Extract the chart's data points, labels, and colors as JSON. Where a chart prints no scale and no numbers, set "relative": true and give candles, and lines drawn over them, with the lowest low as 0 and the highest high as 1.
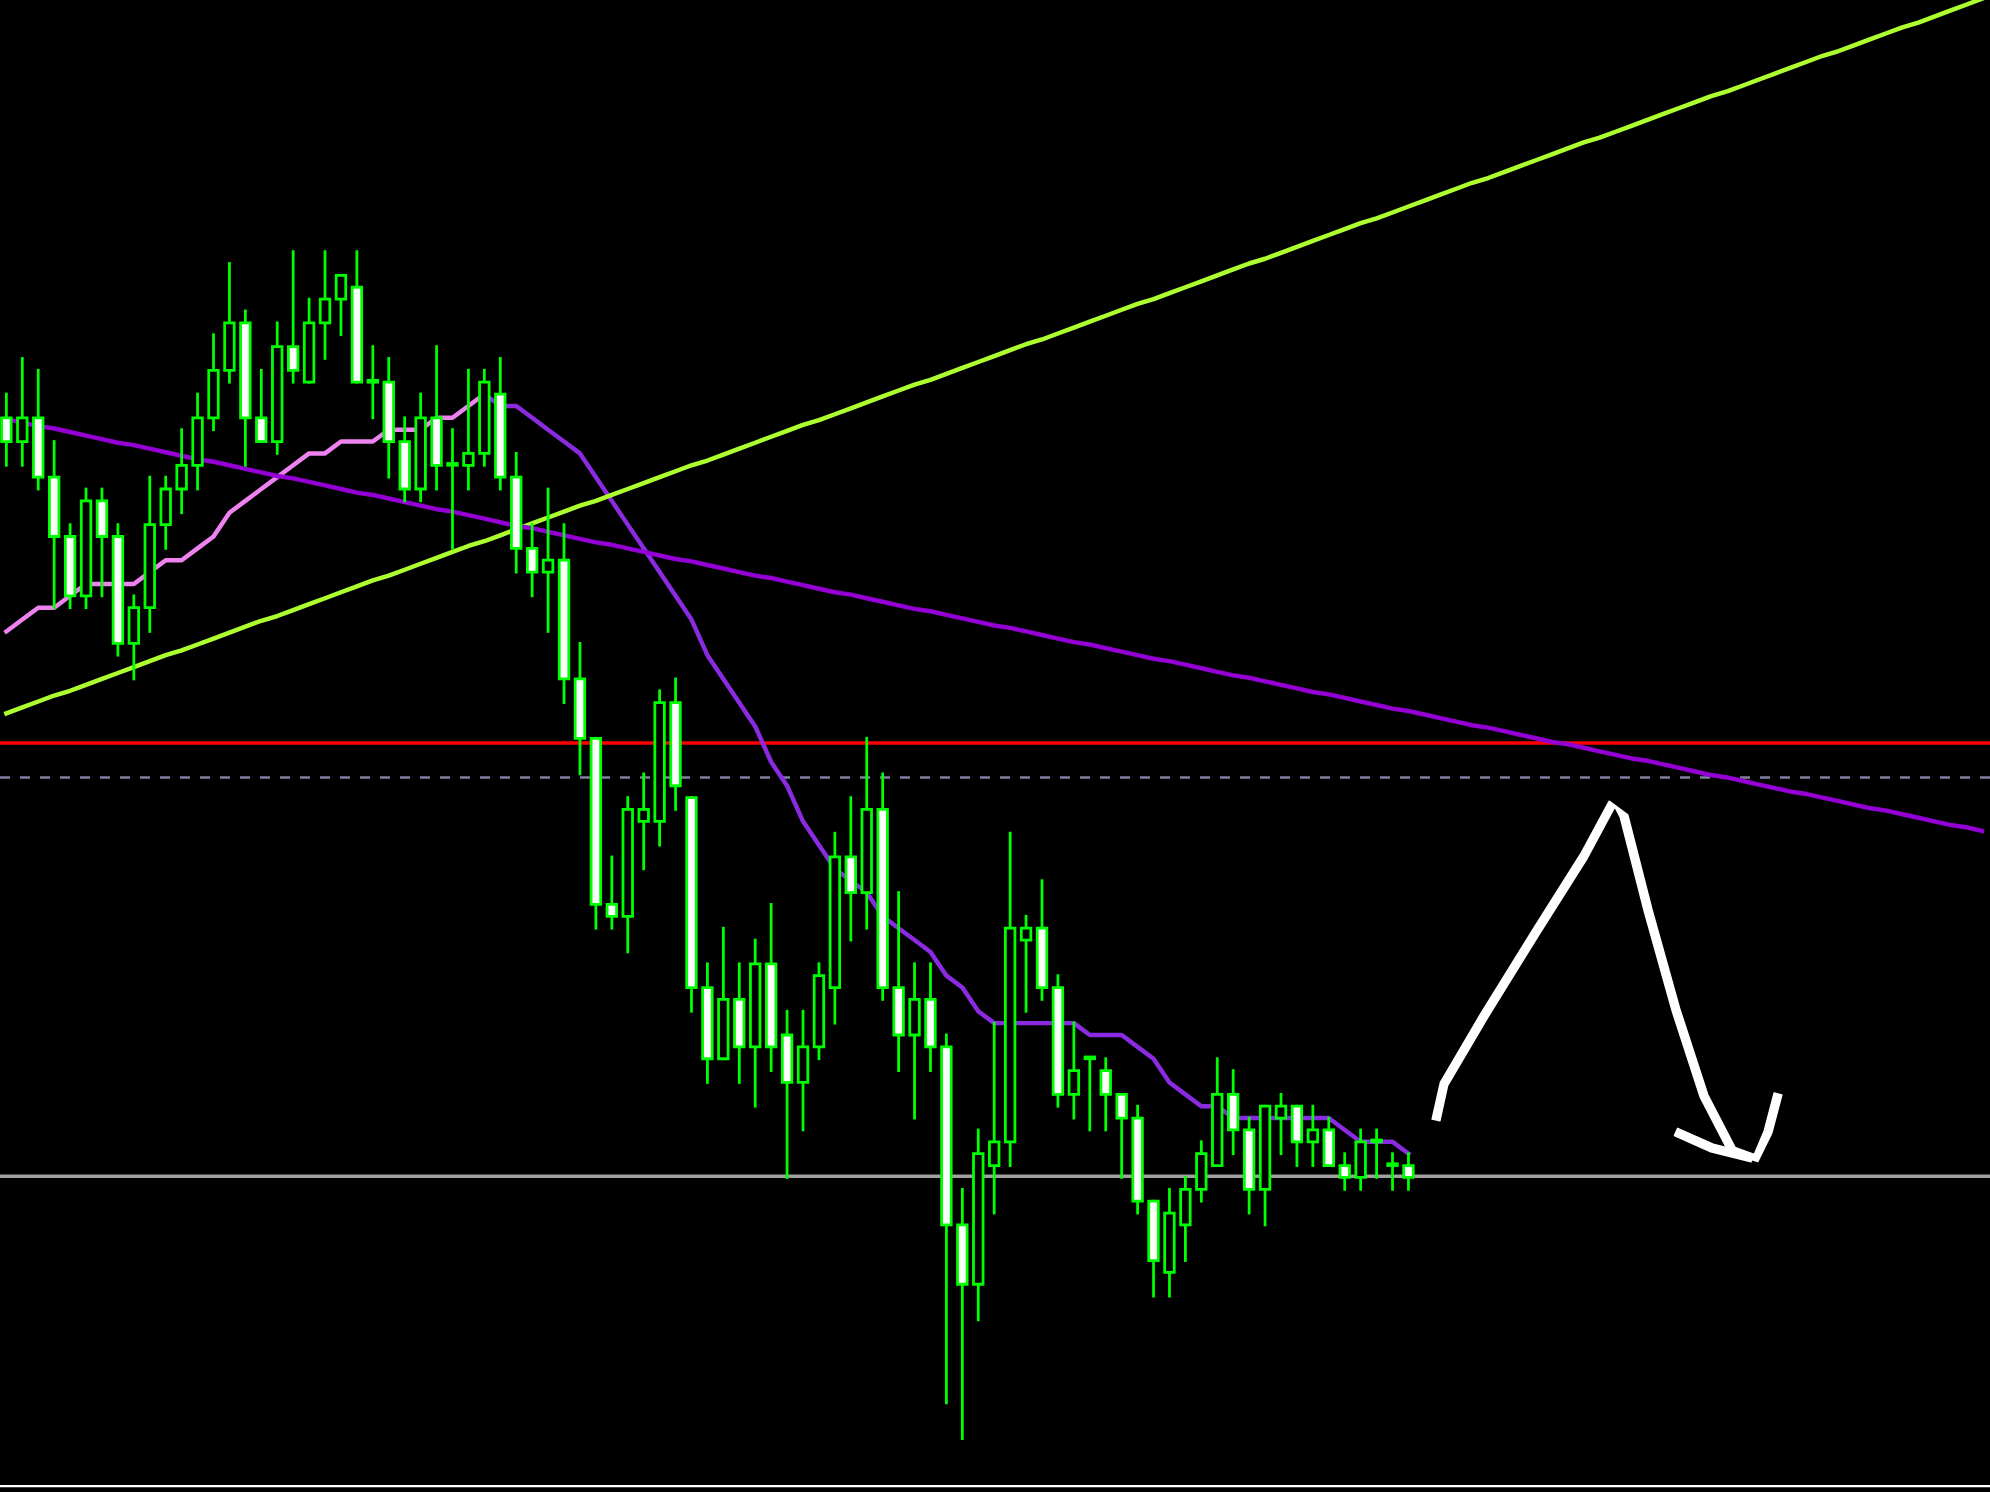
{
  "chart_data": {
    "type": "candlestick",
    "relative": true,
    "categories": [
      null,
      null,
      null,
      null,
      null,
      null,
      null,
      null,
      null,
      null,
      null,
      null,
      null,
      null,
      null,
      null,
      null,
      null,
      null,
      null,
      null,
      null,
      null,
      null,
      null,
      null,
      null,
      null,
      null,
      null,
      null,
      null,
      null,
      null,
      null,
      null,
      null,
      null,
      null,
      null,
      null,
      null,
      null,
      null,
      null,
      null,
      null,
      null,
      null,
      null,
      null,
      null,
      null,
      null,
      null,
      null,
      null,
      null,
      null,
      null,
      null,
      null,
      null,
      null,
      null,
      null,
      null,
      null,
      null,
      null,
      null,
      null,
      null,
      null,
      null,
      null,
      null,
      null,
      null,
      null,
      null,
      null,
      null,
      null,
      null,
      null,
      null,
      null,
      null,
      null,
      null,
      null,
      null,
      null,
      null,
      null,
      null,
      null,
      null,
      null,
      null,
      null,
      null,
      null,
      null,
      null,
      null,
      null,
      null,
      null,
      null,
      null,
      null,
      null,
      null,
      null,
      null,
      null,
      null,
      null,
      null,
      null,
      null,
      null,
      null
    ],
    "ohlc": [
      [
        0.86,
        0.88,
        0.82,
        0.84
      ],
      [
        0.84,
        0.91,
        0.82,
        0.86
      ],
      [
        0.86,
        0.9,
        0.8,
        0.81
      ],
      [
        0.81,
        0.84,
        0.7,
        0.76
      ],
      [
        0.76,
        0.77,
        0.7,
        0.71
      ],
      [
        0.71,
        0.8,
        0.7,
        0.79
      ],
      [
        0.79,
        0.8,
        0.71,
        0.76
      ],
      [
        0.76,
        0.77,
        0.66,
        0.67
      ],
      [
        0.67,
        0.71,
        0.64,
        0.7
      ],
      [
        0.7,
        0.81,
        0.68,
        0.77
      ],
      [
        0.77,
        0.81,
        0.75,
        0.8
      ],
      [
        0.8,
        0.85,
        0.78,
        0.82
      ],
      [
        0.82,
        0.88,
        0.8,
        0.86
      ],
      [
        0.86,
        0.93,
        0.85,
        0.9
      ],
      [
        0.9,
        0.99,
        0.89,
        0.94
      ],
      [
        0.94,
        0.95,
        0.82,
        0.86
      ],
      [
        0.86,
        0.9,
        0.84,
        0.84
      ],
      [
        0.84,
        0.94,
        0.83,
        0.92
      ],
      [
        0.92,
        1.0,
        0.89,
        0.9
      ],
      [
        0.89,
        0.96,
        0.89,
        0.94
      ],
      [
        0.94,
        1.0,
        0.91,
        0.96
      ],
      [
        0.96,
        0.98,
        0.93,
        0.98
      ],
      [
        0.97,
        1.0,
        0.89,
        0.89
      ],
      [
        0.89,
        0.92,
        0.86,
        0.89
      ],
      [
        0.89,
        0.91,
        0.81,
        0.84
      ],
      [
        0.84,
        0.86,
        0.79,
        0.8
      ],
      [
        0.8,
        0.88,
        0.79,
        0.86
      ],
      [
        0.86,
        0.92,
        0.8,
        0.82
      ],
      [
        0.82,
        0.85,
        0.75,
        0.82
      ],
      [
        0.82,
        0.9,
        0.8,
        0.83
      ],
      [
        0.83,
        0.9,
        0.82,
        0.89
      ],
      [
        0.88,
        0.91,
        0.8,
        0.81
      ],
      [
        0.81,
        0.83,
        0.73,
        0.75
      ],
      [
        0.75,
        0.77,
        0.71,
        0.73
      ],
      [
        0.73,
        0.8,
        0.68,
        0.74
      ],
      [
        0.74,
        0.77,
        0.62,
        0.64
      ],
      [
        0.64,
        0.67,
        0.56,
        0.59
      ],
      [
        0.59,
        0.59,
        0.43,
        0.45
      ],
      [
        0.45,
        0.49,
        0.43,
        0.44
      ],
      [
        0.44,
        0.54,
        0.41,
        0.53
      ],
      [
        0.52,
        0.56,
        0.48,
        0.53
      ],
      [
        0.52,
        0.63,
        0.5,
        0.62
      ],
      [
        0.62,
        0.64,
        0.53,
        0.55
      ],
      [
        0.54,
        0.54,
        0.36,
        0.38
      ],
      [
        0.38,
        0.4,
        0.3,
        0.32
      ],
      [
        0.32,
        0.43,
        0.32,
        0.37
      ],
      [
        0.37,
        0.4,
        0.3,
        0.33
      ],
      [
        0.33,
        0.42,
        0.28,
        0.4
      ],
      [
        0.4,
        0.45,
        0.31,
        0.33
      ],
      [
        0.34,
        0.36,
        0.22,
        0.3
      ],
      [
        0.3,
        0.36,
        0.26,
        0.33
      ],
      [
        0.33,
        0.4,
        0.32,
        0.39
      ],
      [
        0.38,
        0.51,
        0.35,
        0.49
      ],
      [
        0.49,
        0.54,
        0.42,
        0.46
      ],
      [
        0.46,
        0.59,
        0.43,
        0.53
      ],
      [
        0.53,
        0.56,
        0.37,
        0.38
      ],
      [
        0.38,
        0.46,
        0.31,
        0.34
      ],
      [
        0.34,
        0.4,
        0.27,
        0.37
      ],
      [
        0.37,
        0.4,
        0.31,
        0.33
      ],
      [
        0.33,
        0.34,
        0.03,
        0.18
      ],
      [
        0.18,
        0.21,
        0,
        0.13
      ],
      [
        0.13,
        0.26,
        0.1,
        0.24
      ],
      [
        0.23,
        0.35,
        0.19,
        0.25
      ],
      [
        0.25,
        0.51,
        0.23,
        0.43
      ],
      [
        0.42,
        0.44,
        0.36,
        0.43
      ],
      [
        0.43,
        0.47,
        0.37,
        0.38
      ],
      [
        0.38,
        0.39,
        0.28,
        0.29
      ],
      [
        0.29,
        0.35,
        0.27,
        0.31
      ],
      [
        0.32,
        0.32,
        0.26,
        0.32
      ],
      [
        0.31,
        0.32,
        0.26,
        0.29
      ],
      [
        0.29,
        0.29,
        0.22,
        0.27
      ],
      [
        0.27,
        0.28,
        0.19,
        0.2
      ],
      [
        0.2,
        0.2,
        0.12,
        0.15
      ],
      [
        0.14,
        0.21,
        0.12,
        0.19
      ],
      [
        0.18,
        0.22,
        0.15,
        0.21
      ],
      [
        0.21,
        0.25,
        0.2,
        0.24
      ],
      [
        0.23,
        0.32,
        0.23,
        0.29
      ],
      [
        0.29,
        0.31,
        0.24,
        0.26
      ],
      [
        0.26,
        0.27,
        0.19,
        0.21
      ],
      [
        0.21,
        0.28,
        0.18,
        0.28
      ],
      [
        0.27,
        0.29,
        0.24,
        0.28
      ],
      [
        0.28,
        0.28,
        0.23,
        0.25
      ],
      [
        0.25,
        0.28,
        0.23,
        0.26
      ],
      [
        0.26,
        0.27,
        0.23,
        0.23
      ],
      [
        0.23,
        0.24,
        0.21,
        0.22
      ],
      [
        0.22,
        0.26,
        0.21,
        0.25
      ],
      [
        0.25,
        0.26,
        0.22,
        0.25
      ],
      [
        0.23,
        0.24,
        0.21,
        0.23
      ],
      [
        0.23,
        0.24,
        0.21,
        0.22
      ],
      null,
      null,
      null,
      null,
      null,
      null,
      null,
      null,
      null,
      null,
      null,
      null,
      null,
      null,
      null,
      null,
      null,
      null,
      null,
      null,
      null,
      null,
      null,
      null,
      null,
      null,
      null,
      null,
      null,
      null,
      null,
      null,
      null,
      null,
      null,
      null
    ],
    "series": [
      {
        "type": "line",
        "color": "#ee82ee",
        "values": [
          0.68,
          0.69,
          0.7,
          0.7,
          0.71,
          0.72,
          0.72,
          0.72,
          0.72,
          0.73,
          0.74,
          0.74,
          0.75,
          0.76,
          0.78,
          0.79,
          0.8,
          0.81,
          0.82,
          0.83,
          0.83,
          0.84,
          0.84,
          0.84,
          0.85,
          0.85,
          0.85,
          0.86,
          0.86,
          0.87,
          0.88,
          null,
          null,
          null,
          null,
          null,
          null,
          null,
          null,
          null,
          null,
          null,
          null,
          null,
          null,
          null,
          null,
          null,
          null,
          null,
          null,
          null,
          null,
          null,
          null,
          null,
          null,
          null,
          null,
          null,
          null,
          null,
          null,
          null,
          null,
          null,
          null,
          null,
          null,
          null,
          null,
          null,
          null,
          null,
          null,
          null,
          null,
          null,
          null,
          null,
          null,
          null,
          null,
          null,
          null,
          null,
          null,
          null,
          null,
          null,
          null,
          null,
          null,
          null,
          null,
          null,
          null,
          null,
          null,
          null,
          null,
          null,
          null,
          null,
          null,
          null,
          null,
          null,
          null,
          null,
          null,
          null,
          null,
          null,
          null,
          null,
          null,
          null,
          null,
          null,
          null,
          null,
          null,
          null,
          null
        ]
      },
      {
        "type": "line",
        "color": "#8a2be2",
        "values": [
          null,
          null,
          null,
          null,
          null,
          null,
          null,
          null,
          null,
          null,
          null,
          null,
          null,
          null,
          null,
          null,
          null,
          null,
          null,
          null,
          null,
          null,
          null,
          null,
          null,
          null,
          null,
          null,
          null,
          null,
          0.88,
          0.87,
          0.87,
          0.86,
          0.85,
          0.84,
          0.83,
          0.81,
          0.79,
          0.77,
          0.75,
          0.73,
          0.71,
          0.69,
          0.66,
          0.64,
          0.62,
          0.6,
          0.57,
          0.55,
          0.52,
          0.5,
          0.48,
          0.47,
          0.46,
          0.44,
          0.43,
          0.42,
          0.41,
          0.39,
          0.38,
          0.36,
          0.35,
          0.35,
          0.35,
          0.35,
          0.35,
          0.35,
          0.34,
          0.34,
          0.34,
          0.33,
          0.32,
          0.3,
          0.29,
          0.28,
          0.28,
          0.27,
          0.27,
          0.27,
          0.27,
          0.27,
          0.27,
          0.27,
          0.26,
          0.25,
          0.25,
          0.25,
          0.24,
          null,
          null,
          null,
          null,
          null,
          null,
          null,
          null,
          null,
          null,
          null,
          null,
          null,
          null,
          null,
          null,
          null,
          null,
          null,
          null,
          null,
          null,
          null,
          null,
          null,
          null,
          null,
          null,
          null,
          null,
          null,
          null,
          null,
          null,
          null,
          null
        ]
      },
      {
        "type": "line",
        "color": "#adff2f",
        "values": [
          0.611,
          0.616,
          0.621,
          0.626,
          0.63,
          0.635,
          0.64,
          0.645,
          0.65,
          0.655,
          0.66,
          0.664,
          0.669,
          0.674,
          0.679,
          0.684,
          0.689,
          0.693,
          0.698,
          0.703,
          0.708,
          0.713,
          0.718,
          0.723,
          0.727,
          0.732,
          0.737,
          0.742,
          0.747,
          0.752,
          0.756,
          0.761,
          0.766,
          0.771,
          0.776,
          0.781,
          0.786,
          0.79,
          0.795,
          0.8,
          0.805,
          0.81,
          0.815,
          0.82,
          0.824,
          0.829,
          0.834,
          0.839,
          0.844,
          0.849,
          0.854,
          0.858,
          0.863,
          0.868,
          0.873,
          0.878,
          0.883,
          0.888,
          0.892,
          0.897,
          0.902,
          0.907,
          0.912,
          0.917,
          0.922,
          0.926,
          0.931,
          0.936,
          0.941,
          0.946,
          0.951,
          0.956,
          0.96,
          0.965,
          0.97,
          0.975,
          0.98,
          0.985,
          0.99,
          0.994,
          0.999,
          1.004,
          1.009,
          1.014,
          1.019,
          1.024,
          1.028,
          1.033,
          1.038,
          1.043,
          1.048,
          1.053,
          1.058,
          1.062,
          1.067,
          1.072,
          1.077,
          1.082,
          1.087,
          1.092,
          1.096,
          1.101,
          1.106,
          1.111,
          1.116,
          1.121,
          1.126,
          1.131,
          1.135,
          1.14,
          1.145,
          1.15,
          1.155,
          1.16,
          1.165,
          1.169,
          1.174,
          1.179,
          1.184,
          1.189,
          1.193,
          1.198,
          1.203,
          1.208,
          1.213
        ]
      },
      {
        "type": "line",
        "color": "#9400d3",
        "values": [
          0.859,
          0.856,
          0.853,
          0.851,
          0.848,
          0.845,
          0.842,
          0.839,
          0.837,
          0.834,
          0.831,
          0.828,
          0.825,
          0.823,
          0.82,
          0.817,
          0.814,
          0.811,
          0.809,
          0.806,
          0.803,
          0.8,
          0.797,
          0.795,
          0.792,
          0.789,
          0.786,
          0.783,
          0.781,
          0.778,
          0.775,
          0.772,
          0.769,
          0.767,
          0.764,
          0.761,
          0.758,
          0.755,
          0.753,
          0.75,
          0.747,
          0.744,
          0.741,
          0.739,
          0.736,
          0.733,
          0.73,
          0.727,
          0.725,
          0.722,
          0.719,
          0.716,
          0.713,
          0.711,
          0.708,
          0.705,
          0.702,
          0.699,
          0.697,
          0.694,
          0.691,
          0.688,
          0.685,
          0.683,
          0.68,
          0.677,
          0.674,
          0.671,
          0.669,
          0.666,
          0.663,
          0.66,
          0.657,
          0.655,
          0.652,
          0.649,
          0.646,
          0.643,
          0.641,
          0.638,
          0.635,
          0.632,
          0.629,
          0.627,
          0.624,
          0.621,
          0.618,
          0.615,
          0.613,
          0.61,
          0.607,
          0.604,
          0.601,
          0.599,
          0.596,
          0.593,
          0.59,
          0.587,
          0.585,
          0.582,
          0.579,
          0.576,
          0.573,
          0.571,
          0.568,
          0.565,
          0.562,
          0.559,
          0.557,
          0.554,
          0.551,
          0.548,
          0.545,
          0.543,
          0.54,
          0.537,
          0.534,
          0.531,
          0.529,
          0.526,
          0.523,
          0.52,
          0.517,
          0.515,
          0.512
        ]
      }
    ],
    "ref_lines": [
      {
        "axis": "y",
        "value": 0.586,
        "color": "#ff0000",
        "line_style": "solid"
      },
      {
        "axis": "y",
        "value": 0.557,
        "color": "#8080a0",
        "line_style": "dashed"
      },
      {
        "axis": "y",
        "value": 0.221,
        "color": "#a0a0a0",
        "line_style": "solid"
      }
    ]
  }
}
